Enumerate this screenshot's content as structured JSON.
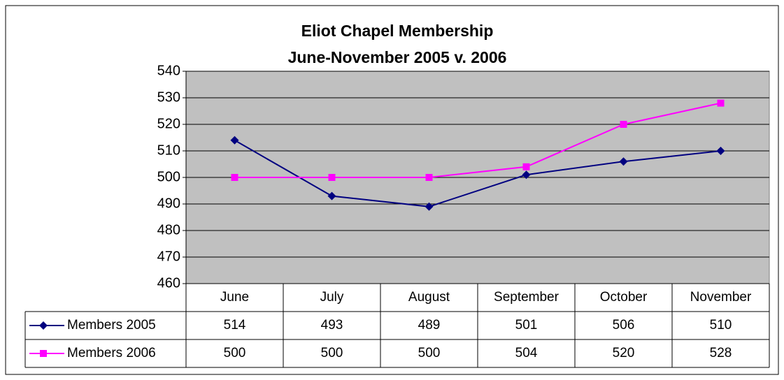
{
  "chart_data": {
    "type": "line",
    "title": "Eliot Chapel Membership",
    "subtitle": "June-November 2005 v. 2006",
    "categories": [
      "June",
      "July",
      "August",
      "September",
      "October",
      "November"
    ],
    "series": [
      {
        "name": "Members 2005",
        "color": "#000080",
        "marker": "diamond",
        "values": [
          514,
          493,
          489,
          501,
          506,
          510
        ]
      },
      {
        "name": "Members 2006",
        "color": "#ff00ff",
        "marker": "square",
        "values": [
          500,
          500,
          500,
          504,
          520,
          528
        ]
      }
    ],
    "ylim": [
      460,
      540
    ],
    "yticks": [
      460,
      470,
      480,
      490,
      500,
      510,
      520,
      530,
      540
    ],
    "grid": true,
    "plot_background": "#c0c0c0",
    "data_table": true
  }
}
